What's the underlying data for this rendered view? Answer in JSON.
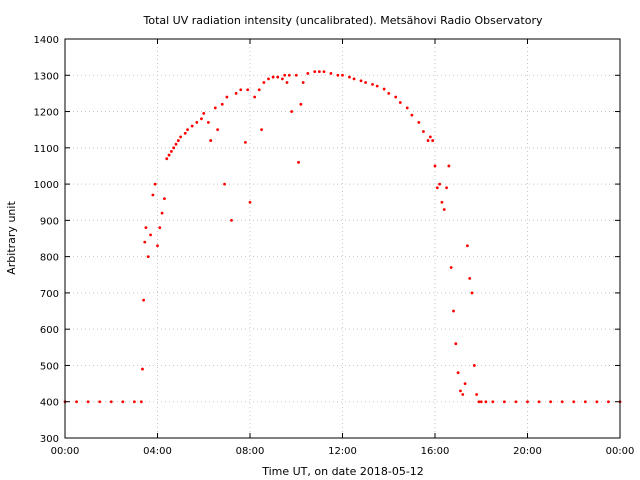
{
  "chart_data": {
    "type": "scatter",
    "title": "Total UV radiation intensity (uncalibrated). Metsähovi Radio Observatory",
    "xlabel": "Time UT, on date 2018-05-12",
    "ylabel": "Arbitrary unit",
    "xlim": [
      0,
      24
    ],
    "ylim": [
      300,
      1400
    ],
    "x_ticks": [
      0,
      4,
      8,
      12,
      16,
      20,
      24
    ],
    "x_tick_labels": [
      "00:00",
      "04:00",
      "08:00",
      "12:00",
      "16:00",
      "20:00",
      "00:00"
    ],
    "y_ticks": [
      300,
      400,
      500,
      600,
      700,
      800,
      900,
      1000,
      1100,
      1200,
      1300,
      1400
    ],
    "y_tick_labels": [
      "300",
      "400",
      "500",
      "600",
      "700",
      "800",
      "900",
      "1000",
      "1100",
      "1200",
      "1300",
      "1400"
    ],
    "grid": true,
    "colors": {
      "points": "#ff0000",
      "grid": "#c8c8c8",
      "axis": "#000000"
    },
    "series": [
      {
        "marker": "point",
        "x": [
          0.0,
          0.5,
          1.0,
          1.5,
          2.0,
          2.5,
          3.0,
          3.3,
          3.35,
          3.4,
          3.45,
          3.5,
          3.6,
          3.7,
          3.8,
          3.9,
          4.0,
          4.1,
          4.2,
          4.3,
          4.4,
          4.5,
          4.6,
          4.7,
          4.8,
          4.9,
          5.0,
          5.2,
          5.3,
          5.5,
          5.7,
          5.9,
          6.0,
          6.2,
          6.3,
          6.5,
          6.6,
          6.8,
          6.9,
          7.0,
          7.2,
          7.4,
          7.6,
          7.8,
          7.9,
          8.0,
          8.2,
          8.4,
          8.5,
          8.6,
          8.8,
          9.0,
          9.2,
          9.4,
          9.5,
          9.6,
          9.7,
          9.8,
          10.0,
          10.1,
          10.2,
          10.3,
          10.5,
          10.8,
          11.0,
          11.2,
          11.5,
          11.8,
          12.0,
          12.3,
          12.5,
          12.8,
          13.0,
          13.3,
          13.5,
          13.8,
          14.0,
          14.3,
          14.5,
          14.8,
          15.0,
          15.3,
          15.5,
          15.7,
          15.8,
          15.9,
          16.0,
          16.1,
          16.2,
          16.3,
          16.4,
          16.5,
          16.6,
          16.7,
          16.8,
          16.9,
          17.0,
          17.1,
          17.2,
          17.3,
          17.4,
          17.5,
          17.6,
          17.7,
          17.8,
          17.9,
          18.0,
          18.2,
          18.5,
          19.0,
          19.5,
          20.0,
          20.5,
          21.0,
          21.5,
          22.0,
          22.5,
          23.0,
          23.5,
          24.0
        ],
        "y": [
          400,
          400,
          400,
          400,
          400,
          400,
          400,
          400,
          490,
          680,
          840,
          880,
          800,
          860,
          970,
          1000,
          830,
          880,
          920,
          960,
          1070,
          1080,
          1090,
          1100,
          1110,
          1120,
          1130,
          1140,
          1150,
          1160,
          1170,
          1180,
          1195,
          1170,
          1120,
          1210,
          1150,
          1220,
          1000,
          1240,
          900,
          1250,
          1260,
          1115,
          1260,
          950,
          1240,
          1260,
          1150,
          1280,
          1290,
          1295,
          1295,
          1290,
          1300,
          1280,
          1300,
          1200,
          1300,
          1060,
          1220,
          1280,
          1305,
          1310,
          1310,
          1310,
          1305,
          1300,
          1300,
          1295,
          1290,
          1285,
          1280,
          1275,
          1270,
          1262,
          1250,
          1240,
          1225,
          1210,
          1190,
          1170,
          1145,
          1120,
          1130,
          1120,
          1050,
          990,
          1000,
          950,
          930,
          990,
          1050,
          770,
          650,
          560,
          480,
          430,
          420,
          450,
          830,
          740,
          700,
          500,
          420,
          400,
          400,
          400,
          400,
          400,
          400,
          400,
          400,
          400,
          400,
          400,
          400,
          400,
          400,
          400
        ]
      }
    ]
  }
}
